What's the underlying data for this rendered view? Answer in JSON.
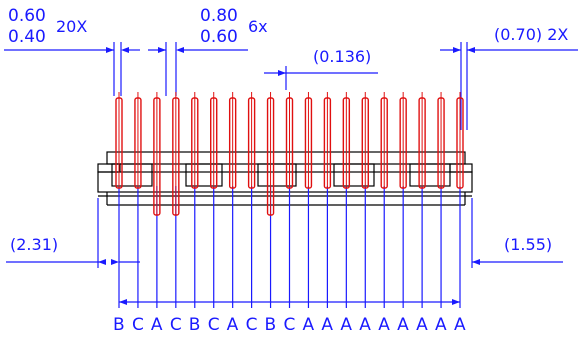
{
  "colors": {
    "dimension": "#1a1aff",
    "pin": "#e01010",
    "outline": "#000000"
  },
  "callouts": {
    "pin_width_top": "0.60",
    "pin_width_bottom": "0.40",
    "pin_width_qty": "20X",
    "pin_width2_top": "0.80",
    "pin_width2_bottom": "0.60",
    "pin_width2_qty": "6x",
    "offset": "(0.136)",
    "end_gap": "(0.70) 2X",
    "left_extent": "(2.31)",
    "right_extent": "(1.55)"
  },
  "pin_labels": [
    "B",
    "C",
    "A",
    "C",
    "B",
    "C",
    "A",
    "C",
    "B",
    "C",
    "A",
    "A",
    "A",
    "A",
    "A",
    "A",
    "A",
    "A",
    "A"
  ]
}
